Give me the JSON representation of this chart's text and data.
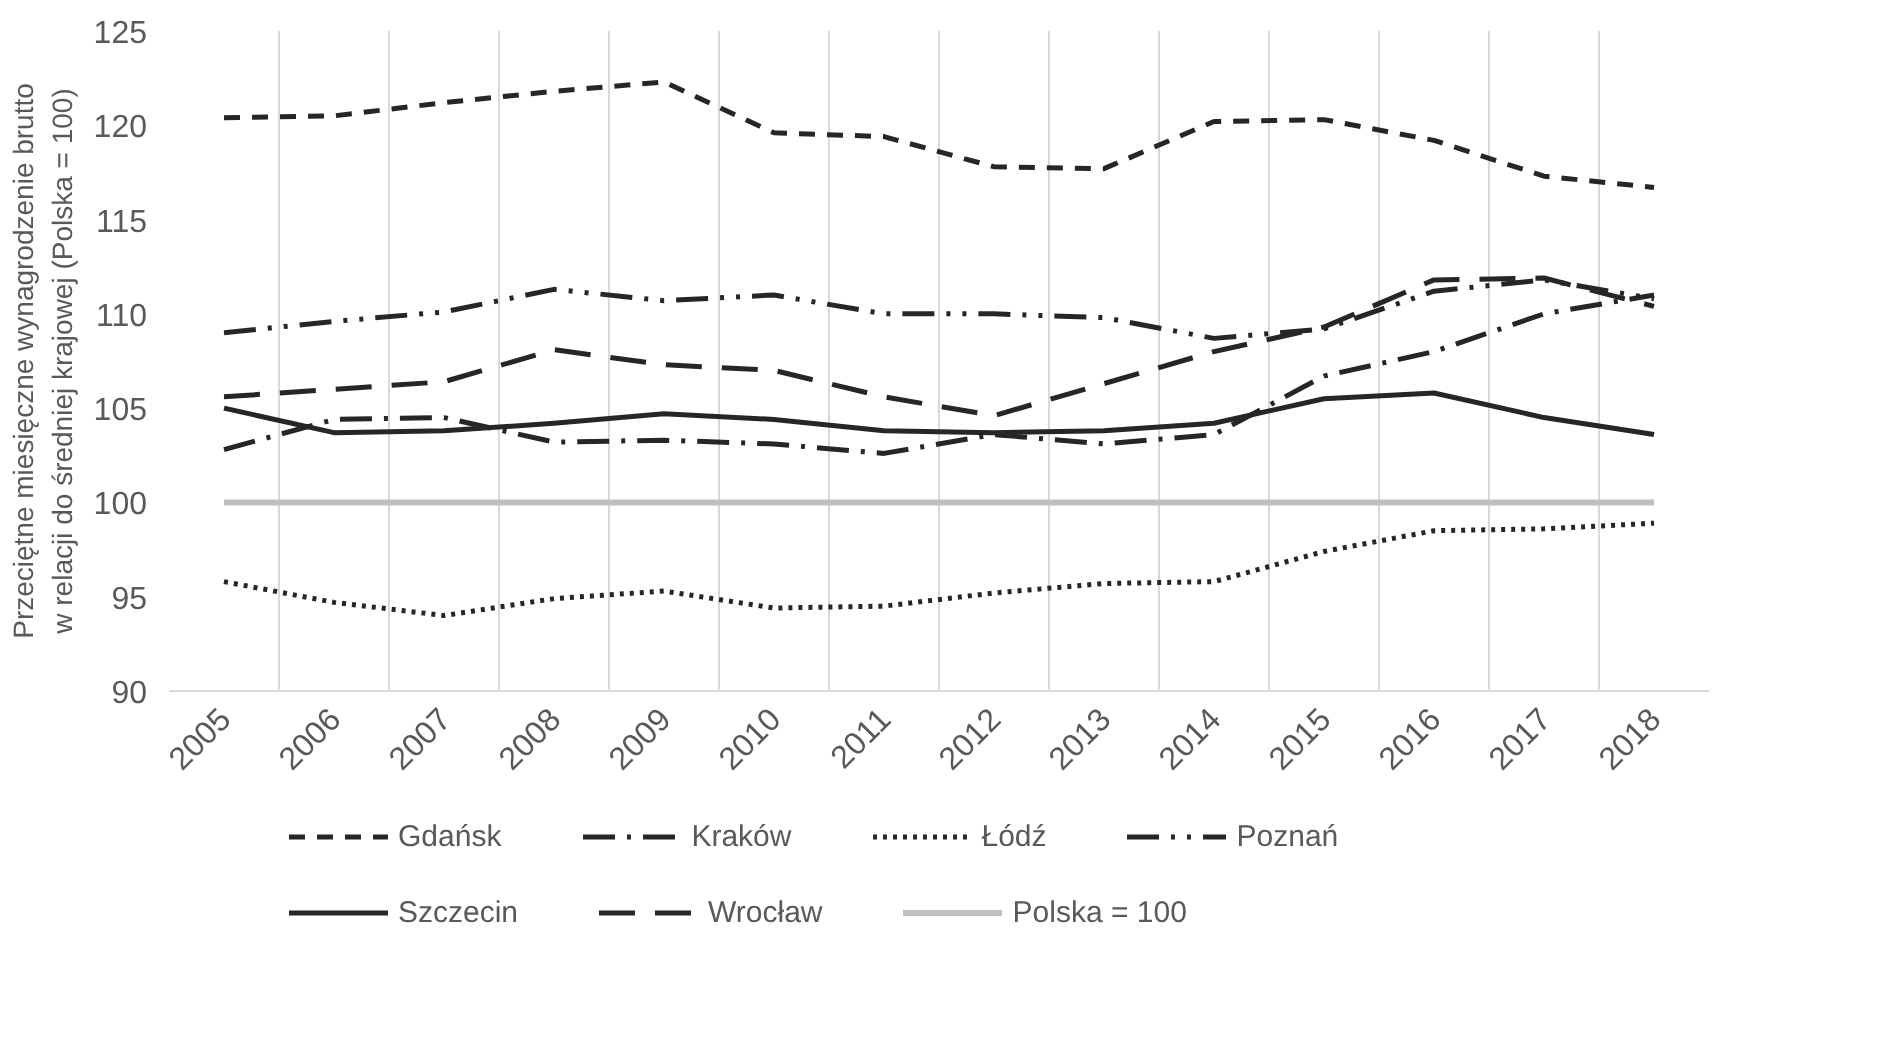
{
  "chart_data": {
    "type": "line",
    "ylabel": "Przeciętne miesięczne wynagrodzenie brutto\nw relacji do średniej krajowej (Polska = 100)",
    "categories": [
      "2005",
      "2006",
      "2007",
      "2008",
      "2009",
      "2010",
      "2011",
      "2012",
      "2013",
      "2014",
      "2015",
      "2016",
      "2017",
      "2018"
    ],
    "series": [
      {
        "name": "Gdańsk",
        "color": "#262626",
        "line_style": "dashed",
        "values": [
          120.4,
          120.5,
          121.2,
          121.8,
          122.3,
          119.6,
          119.4,
          117.8,
          117.7,
          120.2,
          120.3,
          119.2,
          117.3,
          116.7
        ]
      },
      {
        "name": "Kraków",
        "color": "#262626",
        "line_style": "dashdot",
        "values": [
          102.8,
          104.4,
          104.5,
          103.2,
          103.3,
          103.1,
          102.6,
          103.6,
          103.1,
          103.6,
          106.7,
          108.0,
          110.0,
          111.0
        ]
      },
      {
        "name": "Łódź",
        "color": "#262626",
        "line_style": "dotted",
        "values": [
          95.8,
          94.7,
          94.0,
          94.9,
          95.3,
          94.4,
          94.5,
          95.2,
          95.7,
          95.8,
          97.4,
          98.5,
          98.6,
          98.9
        ]
      },
      {
        "name": "Poznań",
        "color": "#262626",
        "line_style": "dashdotdot",
        "values": [
          109.0,
          109.6,
          110.1,
          111.3,
          110.7,
          111.0,
          110.0,
          110.0,
          109.8,
          108.7,
          109.2,
          111.2,
          111.8,
          110.8
        ]
      },
      {
        "name": "Szczecin",
        "color": "#262626",
        "line_style": "solid",
        "values": [
          105.0,
          103.7,
          103.8,
          104.2,
          104.7,
          104.4,
          103.8,
          103.7,
          103.8,
          104.2,
          105.5,
          105.8,
          104.5,
          103.6
        ]
      },
      {
        "name": "Wrocław",
        "color": "#262626",
        "line_style": "longdash",
        "values": [
          105.6,
          106.0,
          106.4,
          108.1,
          107.3,
          107.0,
          105.6,
          104.6,
          106.3,
          108.0,
          109.3,
          111.8,
          111.9,
          110.4
        ]
      },
      {
        "name": "Polska = 100",
        "color": "#bfbfbf",
        "line_style": "solid",
        "values": [
          100,
          100,
          100,
          100,
          100,
          100,
          100,
          100,
          100,
          100,
          100,
          100,
          100,
          100
        ]
      }
    ],
    "ylim": [
      90,
      125
    ],
    "yticks": [
      90,
      95,
      100,
      105,
      110,
      115,
      120,
      125
    ],
    "grid": "x",
    "legend": "bottom"
  }
}
